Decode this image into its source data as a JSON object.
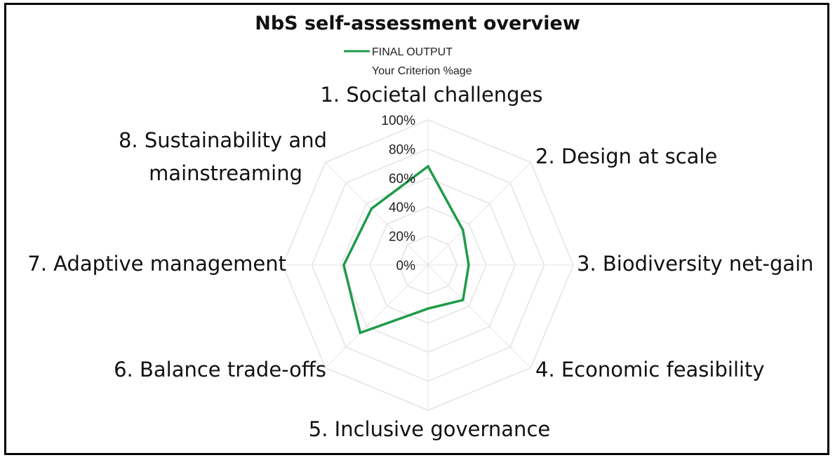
{
  "chart_data": {
    "type": "radar",
    "title": "NbS self-assessment overview",
    "legend_subtitle": "Your Criterion %age",
    "legend_placement": "top",
    "categories": [
      "1. Societal challenges",
      "2. Design at scale",
      "3. Biodiversity net-gain",
      "4. Economic feasibility",
      "5. Inclusive governance",
      "6. Balance trade-offs",
      "7. Adaptive management",
      "8. Sustainability and mainstreaming"
    ],
    "series": [
      {
        "name": "FINAL OUTPUT",
        "color": "#1e9b47",
        "values": [
          68,
          34,
          28,
          34,
          30,
          66,
          58,
          55
        ]
      }
    ],
    "rlim": [
      0,
      100
    ],
    "ticks": [
      "0%",
      "20%",
      "40%",
      "60%",
      "80%",
      "100%"
    ],
    "grid": true,
    "grid_color": "#e4e4e4"
  }
}
